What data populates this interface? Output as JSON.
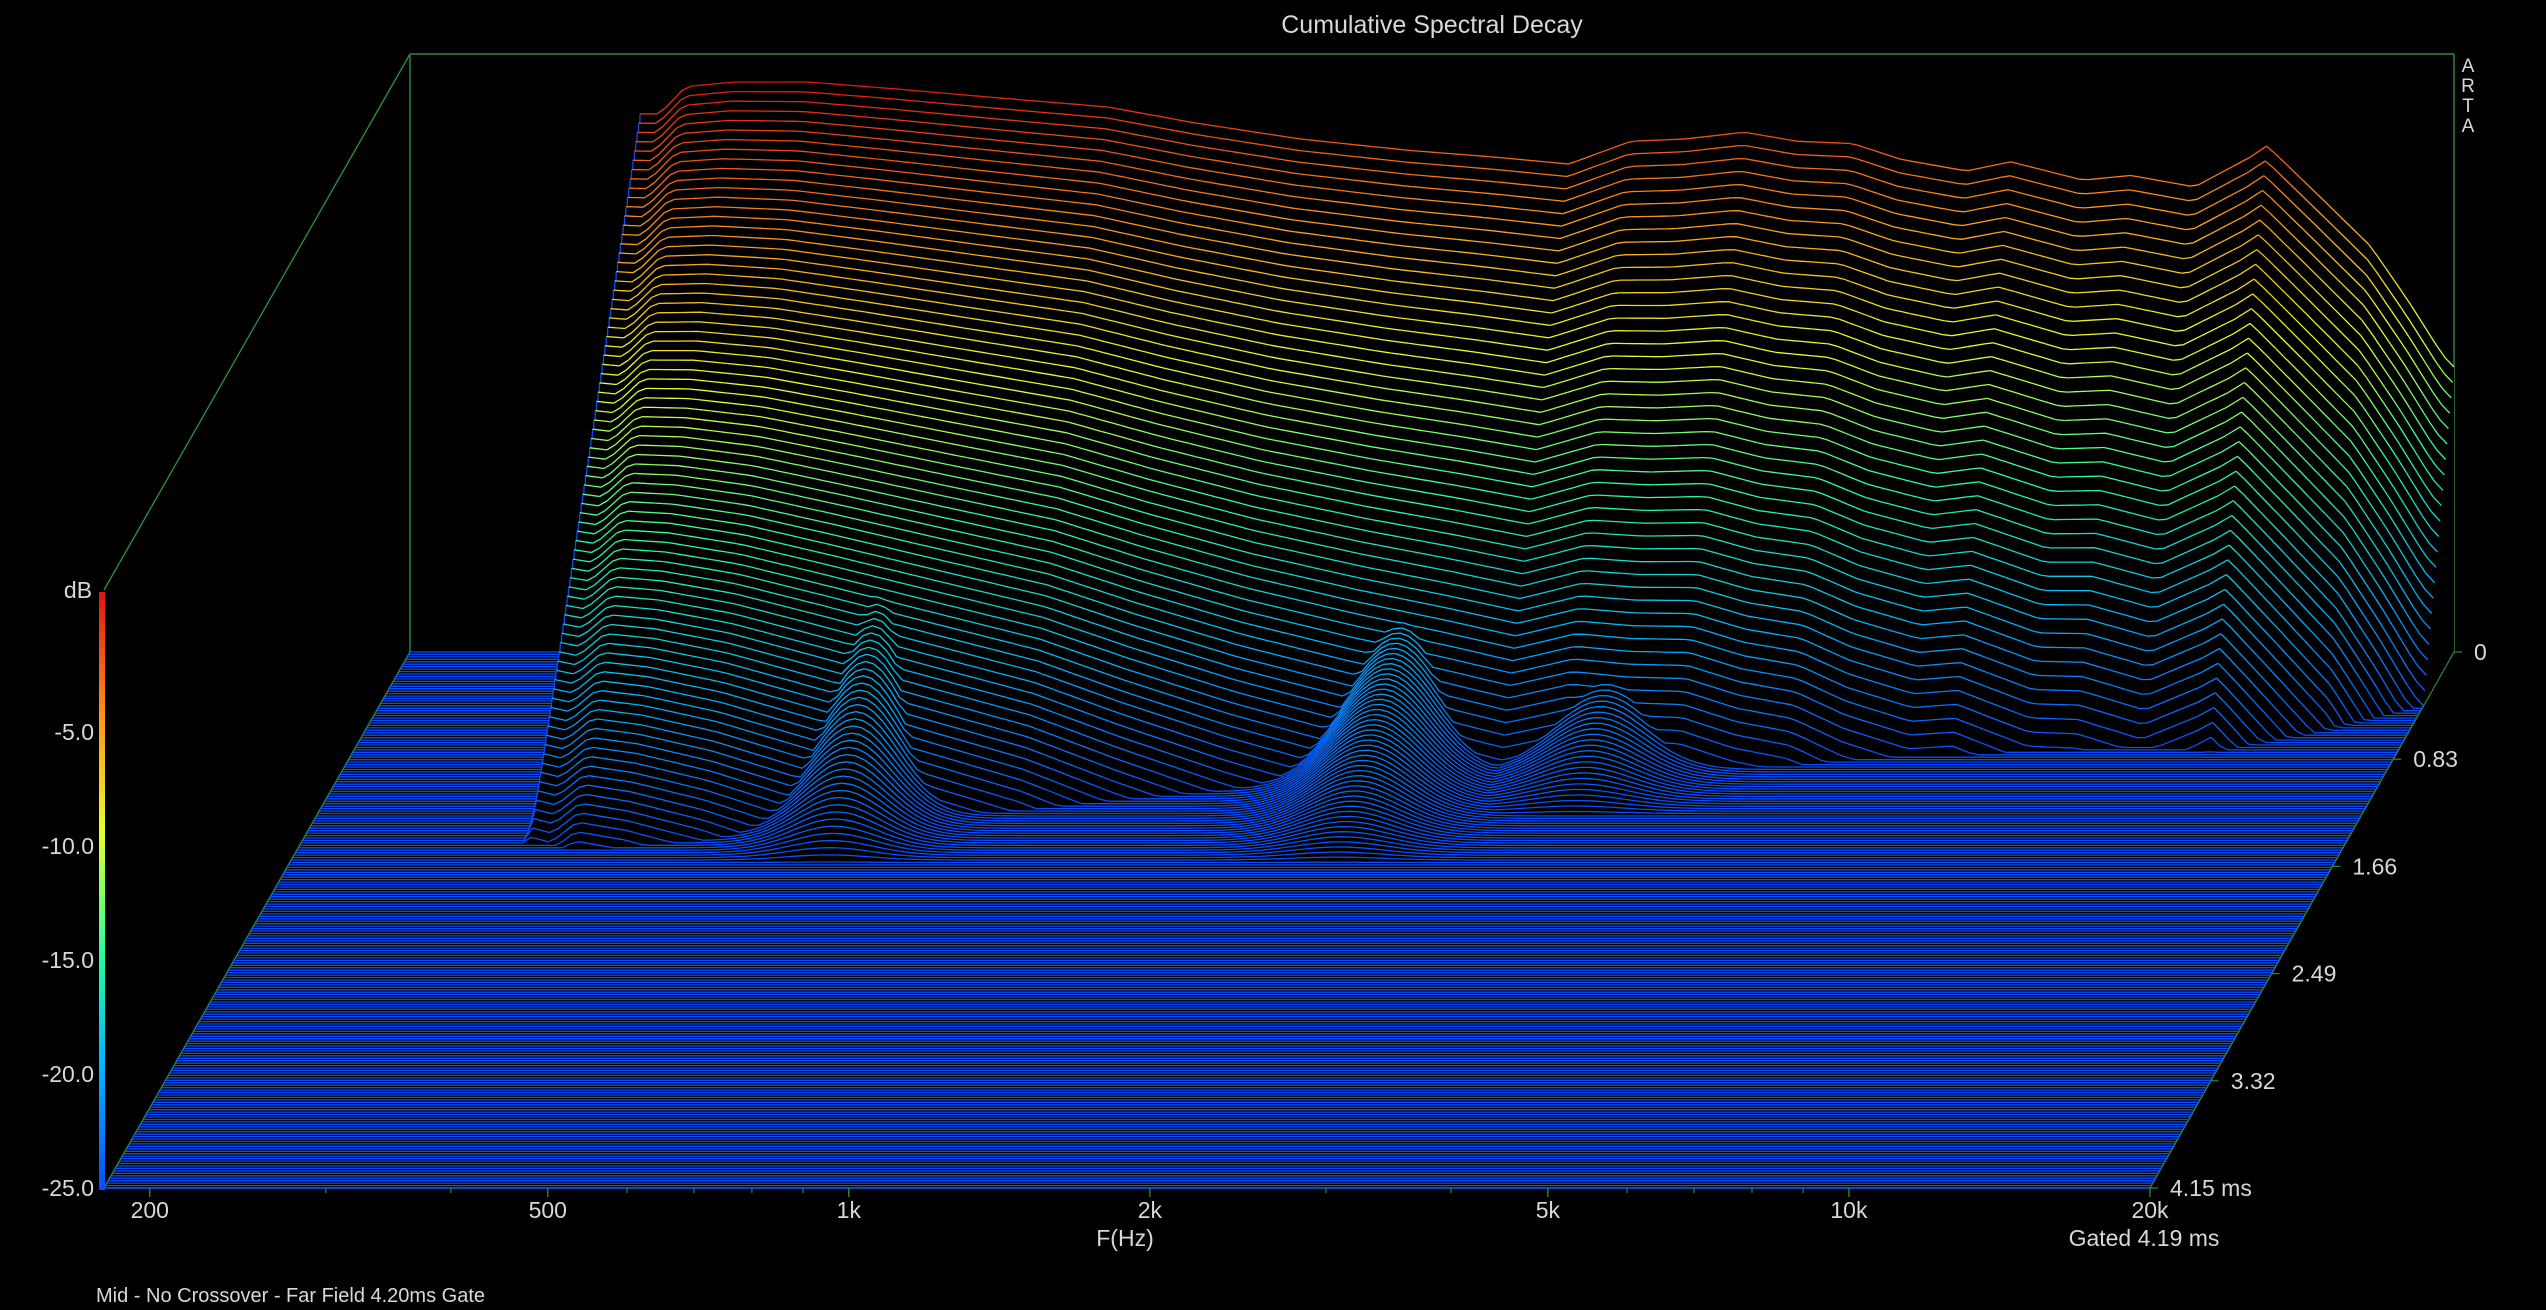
{
  "chart_data": {
    "type": "waterfall",
    "title": "Cumulative Spectral Decay",
    "brand": "ARTA",
    "footnote": "Mid - No Crossover - Far Field 4.20ms Gate",
    "x_axis": {
      "label": "F(Hz)",
      "scale": "log",
      "range": [
        180,
        20000
      ],
      "ticks": [
        {
          "value": 200,
          "label": "200"
        },
        {
          "value": 500,
          "label": "500"
        },
        {
          "value": 1000,
          "label": "1k"
        },
        {
          "value": 2000,
          "label": "2k"
        },
        {
          "value": 5000,
          "label": "5k"
        },
        {
          "value": 10000,
          "label": "10k"
        },
        {
          "value": 20000,
          "label": "20k"
        }
      ],
      "minor_ticks": [
        300,
        400,
        600,
        700,
        800,
        900,
        3000,
        4000,
        6000,
        7000,
        8000,
        9000
      ]
    },
    "z_axis": {
      "label": "dB",
      "range": [
        -25,
        0
      ],
      "ticks": [
        {
          "value": -5,
          "label": "-5.0"
        },
        {
          "value": -10,
          "label": "-10.0"
        },
        {
          "value": -15,
          "label": "-15.0"
        },
        {
          "value": -20,
          "label": "-20.0"
        },
        {
          "value": -25,
          "label": "-25.0"
        }
      ]
    },
    "time_axis": {
      "unit": "ms",
      "range": [
        0,
        4.15
      ],
      "ticks": [
        {
          "value": 0,
          "label": "0"
        },
        {
          "value": 0.83,
          "label": "0.83"
        },
        {
          "value": 1.66,
          "label": "1.66"
        },
        {
          "value": 2.49,
          "label": "2.49"
        },
        {
          "value": 3.32,
          "label": "3.32"
        },
        {
          "value": 4.15,
          "label": "4.15 ms"
        }
      ]
    },
    "gate_label": "Gated 4.19 ms",
    "slice_count": 220,
    "front_response": [
      {
        "f": 320,
        "db": -1.4
      },
      {
        "f": 340,
        "db": -0.2
      },
      {
        "f": 380,
        "db": 0.0
      },
      {
        "f": 450,
        "db": 0.0
      },
      {
        "f": 550,
        "db": -0.3
      },
      {
        "f": 700,
        "db": -0.7
      },
      {
        "f": 900,
        "db": -1.1
      },
      {
        "f": 1100,
        "db": -1.8
      },
      {
        "f": 1400,
        "db": -2.5
      },
      {
        "f": 1800,
        "db": -3.0
      },
      {
        "f": 2200,
        "db": -3.3
      },
      {
        "f": 2600,
        "db": -3.6
      },
      {
        "f": 3000,
        "db": -2.6
      },
      {
        "f": 3400,
        "db": -2.5
      },
      {
        "f": 3900,
        "db": -2.2
      },
      {
        "f": 4400,
        "db": -2.6
      },
      {
        "f": 5000,
        "db": -2.7
      },
      {
        "f": 5600,
        "db": -3.4
      },
      {
        "f": 6500,
        "db": -3.9
      },
      {
        "f": 7200,
        "db": -3.5
      },
      {
        "f": 8500,
        "db": -4.3
      },
      {
        "f": 9500,
        "db": -4.1
      },
      {
        "f": 11000,
        "db": -4.6
      },
      {
        "f": 12500,
        "db": -3.3
      },
      {
        "f": 13000,
        "db": -2.8
      },
      {
        "f": 14500,
        "db": -4.8
      },
      {
        "f": 16500,
        "db": -7.2
      },
      {
        "f": 18000,
        "db": -9.6
      },
      {
        "f": 19500,
        "db": -12.0
      },
      {
        "f": 20000,
        "db": -12.5
      }
    ],
    "resonances": [
      {
        "f": 620,
        "db": -7.2,
        "decay_ms": 1.55
      },
      {
        "f": 2400,
        "db": -3.6,
        "decay_ms": 0.6
      },
      {
        "f": 2000,
        "db": -15.0,
        "decay_ms": 1.55
      },
      {
        "f": 3050,
        "db": -12.0,
        "decay_ms": 0.75
      },
      {
        "f": 3250,
        "db": -16.0,
        "decay_ms": 1.2
      },
      {
        "f": 5500,
        "db": -14.0,
        "decay_ms": 0.35
      },
      {
        "f": 9500,
        "db": -15.0,
        "decay_ms": 0.35
      },
      {
        "f": 12000,
        "db": -9.0,
        "decay_ms": 0.4
      },
      {
        "f": 18500,
        "db": -16.0,
        "decay_ms": 0.1
      }
    ]
  }
}
